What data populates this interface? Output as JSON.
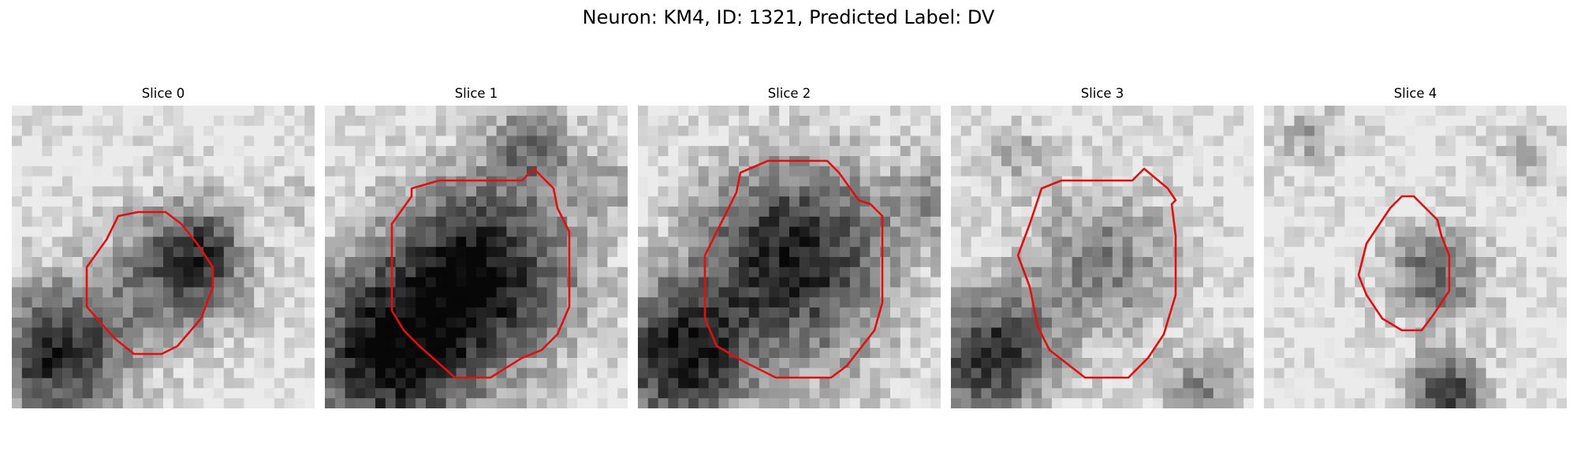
{
  "figure": {
    "title": "Neuron: KM4, ID: 1321, Predicted Label: DV"
  },
  "outline_color": "#e01010",
  "panels": [
    {
      "title": "Slice 0"
    },
    {
      "title": "Slice 1"
    },
    {
      "title": "Slice 2"
    },
    {
      "title": "Slice 3"
    },
    {
      "title": "Slice 4"
    }
  ]
}
